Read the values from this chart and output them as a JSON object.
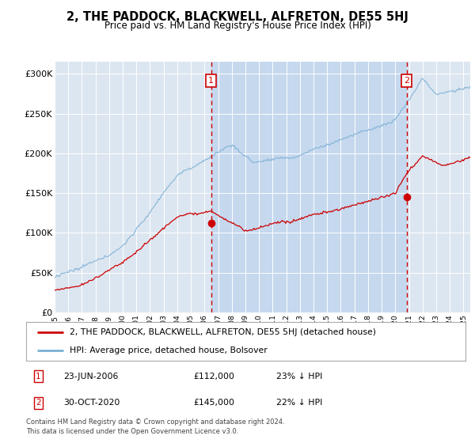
{
  "title": "2, THE PADDOCK, BLACKWELL, ALFRETON, DE55 5HJ",
  "subtitle": "Price paid vs. HM Land Registry's House Price Index (HPI)",
  "ylabel_ticks": [
    "£0",
    "£50K",
    "£100K",
    "£150K",
    "£200K",
    "£250K",
    "£300K"
  ],
  "ytick_values": [
    0,
    50000,
    100000,
    150000,
    200000,
    250000,
    300000
  ],
  "ylim": [
    0,
    315000
  ],
  "xlim_start": 1995.0,
  "xlim_end": 2025.5,
  "hpi_color": "#7aafd4",
  "sale_color": "#cc0000",
  "plot_bg_color": "#dce6f1",
  "highlight_color": "#c5d8ee",
  "grid_color": "#ffffff",
  "marker1_year": 2006.48,
  "marker1_value": 112000,
  "marker1_date": "23-JUN-2006",
  "marker1_pct": "23% ↓ HPI",
  "marker2_year": 2020.83,
  "marker2_value": 145000,
  "marker2_date": "30-OCT-2020",
  "marker2_pct": "22% ↓ HPI",
  "legend_line1": "2, THE PADDOCK, BLACKWELL, ALFRETON, DE55 5HJ (detached house)",
  "legend_line2": "HPI: Average price, detached house, Bolsover",
  "footer": "Contains HM Land Registry data © Crown copyright and database right 2024.\nThis data is licensed under the Open Government Licence v3.0."
}
